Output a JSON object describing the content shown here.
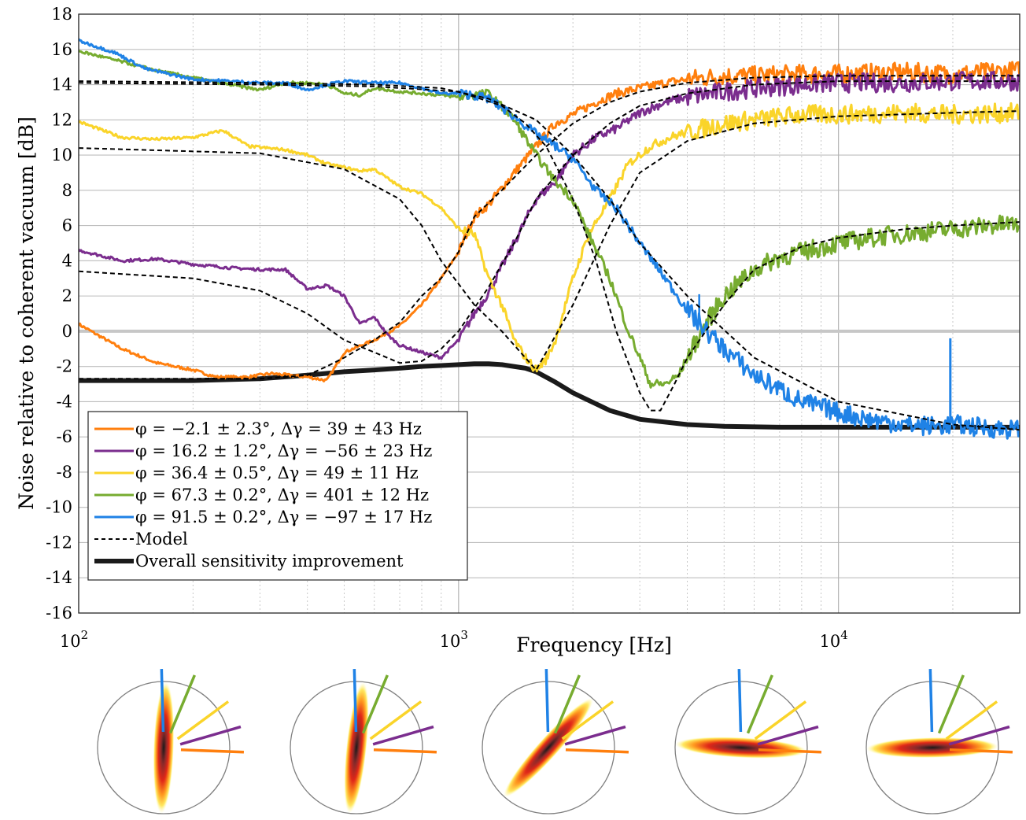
{
  "chart_data": {
    "type": "line",
    "xlabel": "Frequency [Hz]",
    "ylabel": "Noise relative to coherent vacuum [dB]",
    "xscale": "log",
    "xlim": [
      100,
      30000
    ],
    "ylim": [
      -16,
      18
    ],
    "grid": true,
    "legend_position": "bottom-left",
    "x_ticks": [
      {
        "value": 100,
        "base": "10",
        "exp": "2"
      },
      {
        "value": 1000,
        "base": "10",
        "exp": "3"
      },
      {
        "value": 10000,
        "base": "10",
        "exp": "4"
      }
    ],
    "y_ticks": [
      {
        "value": 18,
        "label": "18"
      },
      {
        "value": 16,
        "label": "16"
      },
      {
        "value": 14,
        "label": "14"
      },
      {
        "value": 12,
        "label": "12"
      },
      {
        "value": 10,
        "label": "10"
      },
      {
        "value": 8,
        "label": "8"
      },
      {
        "value": 6,
        "label": "6"
      },
      {
        "value": 4,
        "label": "4"
      },
      {
        "value": 2,
        "label": "2"
      },
      {
        "value": 0,
        "label": "0"
      },
      {
        "value": -2,
        "label": "-2"
      },
      {
        "value": -4,
        "label": "-4"
      },
      {
        "value": -6,
        "label": "-6"
      },
      {
        "value": -8,
        "label": "-8"
      },
      {
        "value": -10,
        "label": "-10"
      },
      {
        "value": -12,
        "label": "-12"
      },
      {
        "value": -14,
        "label": "-14"
      },
      {
        "value": -16,
        "label": "-16"
      }
    ],
    "series": [
      {
        "name": "φ = −2.1 ± 2.3°, Δγ = 39 ± 43 Hz",
        "phi": "−2.1 ± 2.3°",
        "dgamma": "39 ± 43 Hz",
        "color": "#ff7f0e",
        "x": [
          100,
          130,
          160,
          200,
          230,
          280,
          320,
          400,
          450,
          500,
          600,
          700,
          800,
          900,
          1000,
          1100,
          1200,
          1400,
          1600,
          1800,
          2000,
          2300,
          2600,
          3000,
          3500,
          4000,
          5000,
          6000,
          8000,
          10000,
          15000,
          20000,
          30000
        ],
        "y": [
          0.4,
          -1.0,
          -1.8,
          -2.2,
          -2.6,
          -2.6,
          -2.4,
          -2.6,
          -2.8,
          -1.2,
          -0.5,
          0.3,
          1.5,
          3.0,
          4.5,
          6.5,
          7.2,
          9.0,
          10.5,
          11.8,
          12.3,
          13.0,
          13.5,
          13.8,
          14.1,
          14.3,
          14.5,
          14.5,
          14.6,
          14.6,
          14.7,
          14.6,
          14.8
        ]
      },
      {
        "name": "φ = 16.2 ± 1.2°, Δγ = −56 ± 23 Hz",
        "phi": "16.2 ± 1.2°",
        "dgamma": "−56 ± 23 Hz",
        "color": "#7b2d8e",
        "x": [
          100,
          130,
          160,
          200,
          250,
          300,
          350,
          400,
          450,
          500,
          550,
          600,
          650,
          700,
          800,
          900,
          1000,
          1100,
          1200,
          1400,
          1600,
          1800,
          2000,
          2300,
          2600,
          3000,
          3500,
          4000,
          5000,
          6000,
          8000,
          10000,
          15000,
          20000,
          30000
        ],
        "y": [
          4.6,
          4.0,
          4.1,
          3.8,
          3.6,
          3.5,
          3.5,
          2.4,
          2.6,
          2.0,
          0.4,
          0.8,
          -0.2,
          -0.8,
          -1.2,
          -1.5,
          -0.5,
          1.0,
          2.2,
          5.0,
          7.5,
          8.5,
          10.0,
          11.0,
          11.5,
          12.4,
          13.0,
          13.3,
          13.6,
          13.8,
          14.0,
          14.1,
          14.1,
          14.2,
          14.2
        ]
      },
      {
        "name": "φ = 36.4 ± 0.5°, Δγ = 49 ± 11 Hz",
        "phi": "36.4 ± 0.5°",
        "dgamma": "49 ± 11 Hz",
        "color": "#fad42a",
        "x": [
          100,
          130,
          160,
          200,
          240,
          280,
          350,
          400,
          450,
          500,
          550,
          600,
          700,
          800,
          900,
          1000,
          1100,
          1200,
          1300,
          1400,
          1500,
          1600,
          1700,
          1800,
          2000,
          2200,
          2500,
          2800,
          3200,
          3600,
          4000,
          5000,
          6000,
          8000,
          10000,
          15000,
          20000,
          30000
        ],
        "y": [
          11.9,
          11.0,
          10.9,
          11.0,
          11.4,
          10.5,
          10.3,
          10.0,
          9.5,
          9.3,
          9.1,
          9.2,
          8.2,
          7.8,
          7.0,
          5.8,
          5.5,
          3.0,
          1.5,
          -0.5,
          -1.5,
          -2.2,
          -1.6,
          -0.5,
          3.0,
          5.5,
          7.5,
          9.5,
          10.5,
          11.0,
          11.3,
          11.8,
          12.0,
          12.3,
          12.3,
          12.4,
          12.3,
          12.4
        ]
      },
      {
        "name": "φ = 67.3 ± 0.2°, Δγ = 401 ± 12 Hz",
        "phi": "67.3 ± 0.2°",
        "dgamma": "401 ± 12 Hz",
        "color": "#77ac30",
        "x": [
          100,
          130,
          160,
          200,
          250,
          300,
          350,
          400,
          450,
          500,
          550,
          600,
          700,
          800,
          900,
          1000,
          1200,
          1400,
          1600,
          1800,
          2000,
          2200,
          2500,
          2800,
          3000,
          3200,
          3500,
          3800,
          4000,
          4500,
          5000,
          6000,
          7000,
          8000,
          10000,
          13000,
          16000,
          20000,
          25000,
          30000
        ],
        "y": [
          15.9,
          15.3,
          14.8,
          14.4,
          14.0,
          13.7,
          14.1,
          14.1,
          14.0,
          13.5,
          13.4,
          13.8,
          13.6,
          13.5,
          13.4,
          13.3,
          13.5,
          12.0,
          10.0,
          8.5,
          7.5,
          5.5,
          3.0,
          0.0,
          -1.5,
          -3.0,
          -3.0,
          -2.5,
          -1.5,
          0.5,
          2.0,
          3.5,
          4.2,
          4.5,
          5.0,
          5.4,
          5.6,
          5.8,
          6.0,
          6.1
        ]
      },
      {
        "name": "φ = 91.5 ± 0.2°, Δγ = −97 ± 17 Hz",
        "phi": "91.5 ± 0.2°",
        "dgamma": "−97 ± 17 Hz",
        "color": "#1f82e6",
        "x": [
          100,
          125,
          150,
          200,
          250,
          300,
          350,
          400,
          450,
          500,
          600,
          700,
          800,
          900,
          1000,
          1100,
          1200,
          1400,
          1600,
          1800,
          2000,
          2300,
          2600,
          3000,
          3500,
          4000,
          4500,
          5000,
          6000,
          7000,
          8000,
          10000,
          12000,
          15000,
          18000,
          20000,
          25000,
          30000
        ],
        "y": [
          16.5,
          15.8,
          14.9,
          14.3,
          14.2,
          14.1,
          14.1,
          13.7,
          14.0,
          14.2,
          14.1,
          14.1,
          13.8,
          13.5,
          13.5,
          13.4,
          13.2,
          12.2,
          11.2,
          10.5,
          9.8,
          8.0,
          7.0,
          5.0,
          3.0,
          1.2,
          0.0,
          -1.0,
          -2.5,
          -3.3,
          -4.0,
          -4.6,
          -5.0,
          -5.3,
          -5.4,
          -5.3,
          -5.5,
          -5.6
        ]
      },
      {
        "name": "Model",
        "color": "#000000",
        "dashed": true,
        "segments": [
          {
            "x": [
              100,
              300,
              600,
              900,
              1200,
              1600,
              2000,
              2500,
              3000,
              4000,
              6000,
              10000,
              20000,
              30000
            ],
            "y": [
              14.2,
              14.1,
              14.0,
              13.8,
              13.2,
              12.0,
              10.0,
              7.5,
              5.0,
              2.0,
              -1.5,
              -4.0,
              -5.3,
              -5.6
            ]
          },
          {
            "x": [
              100,
              300,
              500,
              700,
              800,
              900,
              1100,
              1300,
              1600,
              2000,
              2500,
              3000,
              4000,
              6000,
              10000,
              20000,
              30000
            ],
            "y": [
              10.4,
              10.1,
              9.2,
              7.5,
              6.0,
              4.0,
              1.5,
              0.0,
              -2.2,
              1.5,
              6.0,
              9.0,
              10.8,
              11.8,
              12.2,
              12.4,
              12.5
            ]
          },
          {
            "x": [
              100,
              200,
              300,
              400,
              500,
              600,
              700,
              800,
              900,
              1000,
              1200,
              1400,
              1600,
              2000,
              2500,
              3000,
              4000,
              6000,
              10000,
              20000,
              30000
            ],
            "y": [
              3.4,
              3.0,
              2.3,
              1.0,
              -0.5,
              -1.2,
              -1.8,
              -1.7,
              -1.0,
              0.0,
              2.5,
              5.0,
              7.5,
              10.0,
              11.8,
              12.8,
              13.5,
              14.0,
              14.2,
              14.2,
              14.2
            ]
          },
          {
            "x": [
              100,
              300,
              400,
              450,
              500,
              600,
              700,
              800,
              900,
              1000,
              1100,
              1300,
              1600,
              2000,
              2500,
              3000,
              4000,
              6000,
              10000,
              20000,
              30000
            ],
            "y": [
              -2.7,
              -2.7,
              -2.5,
              -2.0,
              -1.5,
              -0.5,
              0.5,
              2.0,
              3.0,
              4.5,
              6.5,
              8.0,
              10.0,
              11.8,
              13.0,
              13.6,
              14.1,
              14.4,
              14.5,
              14.5,
              14.5
            ]
          },
          {
            "x": [
              100,
              300,
              600,
              1000,
              1300,
              1500,
              1700,
              2000,
              2300,
              2600,
              3000,
              3200,
              3400,
              3700,
              4000,
              5000,
              6000,
              8000,
              10000,
              15000,
              20000,
              30000
            ],
            "y": [
              14.1,
              14.0,
              13.9,
              13.6,
              12.8,
              11.8,
              10.5,
              7.5,
              4.0,
              0.0,
              -3.5,
              -4.5,
              -4.5,
              -3.0,
              -1.5,
              1.5,
              3.5,
              4.8,
              5.3,
              5.8,
              6.0,
              6.2
            ]
          }
        ]
      },
      {
        "name": "Overall sensitivity improvement",
        "color": "#1a1a1a",
        "thick": true,
        "x": [
          100,
          200,
          300,
          400,
          500,
          600,
          700,
          800,
          900,
          1000,
          1100,
          1200,
          1300,
          1500,
          1600,
          1800,
          2000,
          2500,
          3000,
          4000,
          5000,
          7000,
          10000,
          15000,
          20000,
          30000
        ],
        "y": [
          -2.8,
          -2.8,
          -2.7,
          -2.5,
          -2.3,
          -2.2,
          -2.1,
          -2.0,
          -1.95,
          -1.9,
          -1.85,
          -1.85,
          -1.9,
          -2.1,
          -2.3,
          -2.9,
          -3.5,
          -4.5,
          -5.0,
          -5.3,
          -5.4,
          -5.45,
          -5.45,
          -5.45,
          -5.45,
          -5.45
        ]
      }
    ],
    "phase_space_insets": [
      {
        "ellipse_angle_deg": 88,
        "color": "#1f82e6"
      },
      {
        "ellipse_angle_deg": 84,
        "color": "#77ac30"
      },
      {
        "ellipse_angle_deg": 48,
        "color": "#fad42a"
      },
      {
        "ellipse_angle_deg": -3,
        "color": "#7b2d8e"
      },
      {
        "ellipse_angle_deg": 1,
        "color": "#ff7f0e"
      }
    ],
    "inset_indicator_angles_deg": [
      -2.1,
      16.2,
      36.4,
      67.3,
      91.5
    ]
  }
}
